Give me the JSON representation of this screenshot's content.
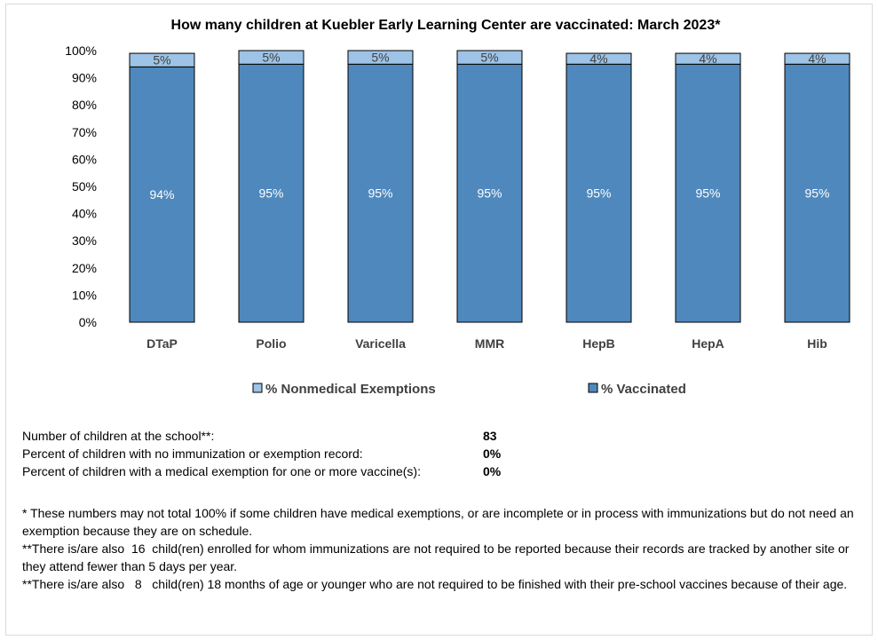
{
  "chart_data": {
    "type": "bar",
    "stacked": true,
    "title": "How many children at Kuebler Early Learning Center are vaccinated: March 2023*",
    "categories": [
      "DTaP",
      "Polio",
      "Varicella",
      "MMR",
      "HepB",
      "HepA",
      "Hib"
    ],
    "series": [
      {
        "name": "% Vaccinated",
        "values": [
          94,
          95,
          95,
          95,
          95,
          95,
          95
        ],
        "labels": [
          "94%",
          "95%",
          "95%",
          "95%",
          "95%",
          "95%",
          "95%"
        ],
        "color": "#4f88bd"
      },
      {
        "name": "% Nonmedical Exemptions",
        "values": [
          5,
          5,
          5,
          5,
          4,
          4,
          4
        ],
        "labels": [
          "5%",
          "5%",
          "5%",
          "5%",
          "4%",
          "4%",
          "4%"
        ],
        "color": "#9dc3e6"
      }
    ],
    "yticks": [
      "0%",
      "10%",
      "20%",
      "30%",
      "40%",
      "50%",
      "60%",
      "70%",
      "80%",
      "90%",
      "100%"
    ],
    "ylim": [
      0,
      100
    ],
    "grid": false,
    "legend_position": "bottom"
  },
  "stats": [
    {
      "label": "Number of children at the school**:",
      "value": "83"
    },
    {
      "label": "Percent of children with no immunization or exemption record:",
      "value": "0%"
    },
    {
      "label": "Percent of children with a medical exemption for one or more vaccine(s):",
      "value": "0%"
    }
  ],
  "notes": [
    "* These numbers may not total 100% if some children have medical exemptions, or are incomplete or in process with immunizations but do not need an exemption because they are on schedule.",
    "**There is/are also  16  child(ren) enrolled for whom immunizations are not required to be reported because their records are tracked by another site or they attend fewer than 5 days per year.",
    "**There is/are also   8   child(ren) 18 months of age or younger who are not required to be finished with their pre-school vaccines because of their age."
  ]
}
